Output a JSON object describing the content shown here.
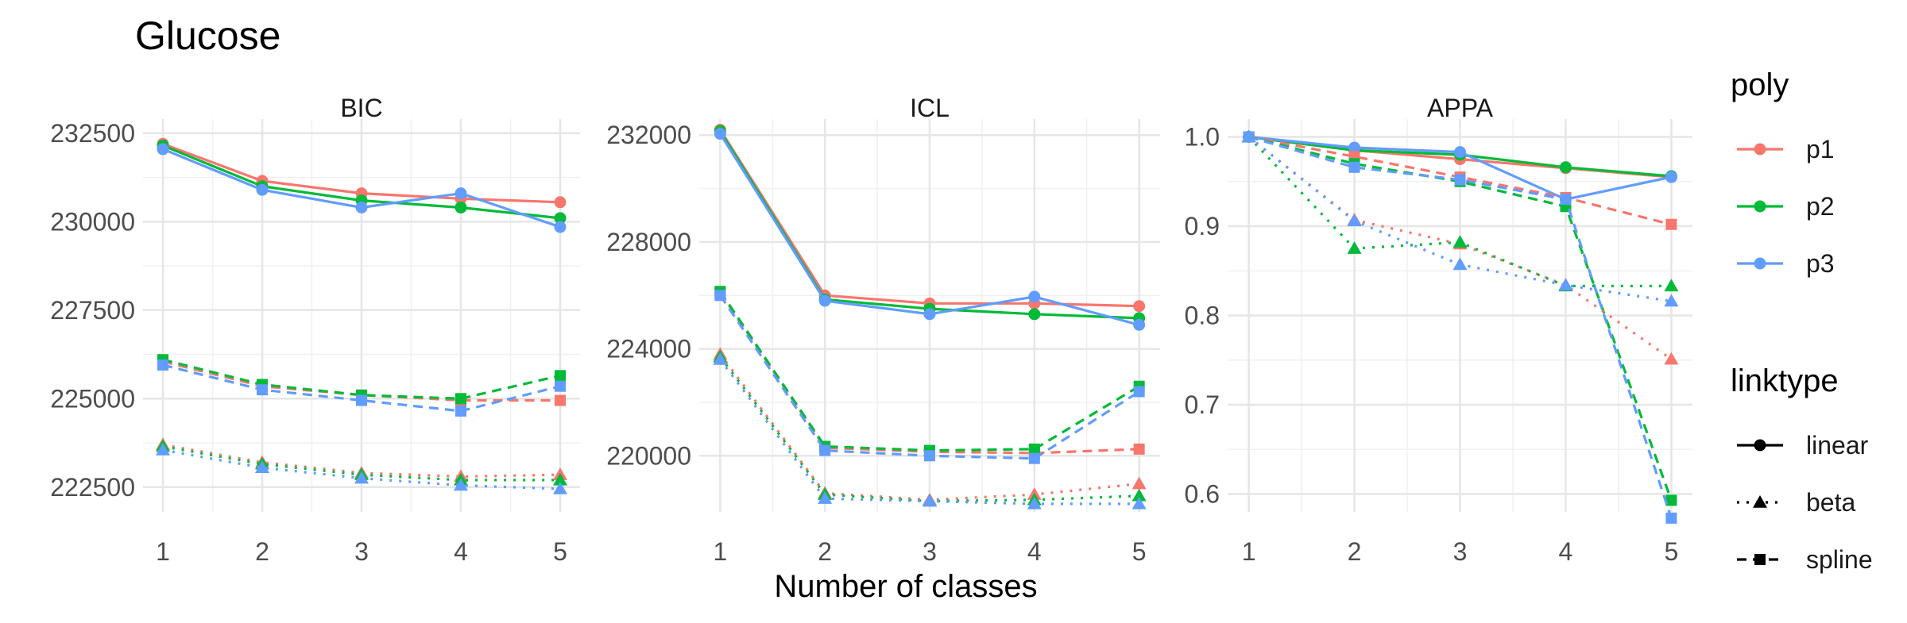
{
  "chart_data": {
    "type": "line",
    "title": "Glucose",
    "xlabel": "Number of classes",
    "ylabel": "",
    "x": [
      1,
      2,
      3,
      4,
      5
    ],
    "colors": {
      "p1": "#F8766D",
      "p2": "#00BA38",
      "p3": "#619CFF"
    },
    "grid": true,
    "legend_position": "right",
    "legend": {
      "poly_title": "poly",
      "poly": [
        "p1",
        "p2",
        "p3"
      ],
      "linktype_title": "linktype",
      "linktype": [
        "linear",
        "beta",
        "spline"
      ]
    },
    "panels": [
      {
        "name": "BIC",
        "ylim": [
          221800,
          232900
        ],
        "yticks": [
          222500,
          225000,
          227500,
          230000,
          232500
        ],
        "series": [
          {
            "poly": "p1",
            "linktype": "linear",
            "values": [
              232200,
              231150,
              230800,
              230650,
              230550
            ]
          },
          {
            "poly": "p2",
            "linktype": "linear",
            "values": [
              232150,
              231000,
              230600,
              230400,
              230100
            ]
          },
          {
            "poly": "p3",
            "linktype": "linear",
            "values": [
              232050,
              230900,
              230400,
              230800,
              229850
            ]
          },
          {
            "poly": "p1",
            "linktype": "spline",
            "values": [
              226050,
              225350,
              225100,
              224950,
              224950
            ]
          },
          {
            "poly": "p2",
            "linktype": "spline",
            "values": [
              226100,
              225400,
              225100,
              225000,
              225650
            ]
          },
          {
            "poly": "p3",
            "linktype": "spline",
            "values": [
              225950,
              225250,
              224950,
              224650,
              225350
            ]
          },
          {
            "poly": "p1",
            "linktype": "beta",
            "values": [
              223700,
              223200,
              222900,
              222800,
              222850
            ]
          },
          {
            "poly": "p2",
            "linktype": "beta",
            "values": [
              223650,
              223150,
              222850,
              222700,
              222700
            ]
          },
          {
            "poly": "p3",
            "linktype": "beta",
            "values": [
              223550,
              223050,
              222750,
              222550,
              222450
            ]
          }
        ]
      },
      {
        "name": "ICL",
        "ylim": [
          217900,
          232600
        ],
        "yticks": [
          220000,
          224000,
          228000,
          232000
        ],
        "series": [
          {
            "poly": "p1",
            "linktype": "linear",
            "values": [
              232200,
              226000,
              225700,
              225700,
              225600
            ]
          },
          {
            "poly": "p2",
            "linktype": "linear",
            "values": [
              232150,
              225850,
              225500,
              225300,
              225150
            ]
          },
          {
            "poly": "p3",
            "linktype": "linear",
            "values": [
              232050,
              225800,
              225300,
              225950,
              224900
            ]
          },
          {
            "poly": "p1",
            "linktype": "spline",
            "values": [
              226100,
              220300,
              220150,
              220100,
              220250
            ]
          },
          {
            "poly": "p2",
            "linktype": "spline",
            "values": [
              226150,
              220350,
              220200,
              220250,
              222600
            ]
          },
          {
            "poly": "p3",
            "linktype": "spline",
            "values": [
              226000,
              220200,
              220000,
              219900,
              222400
            ]
          },
          {
            "poly": "p1",
            "linktype": "beta",
            "values": [
              223800,
              218600,
              218350,
              218550,
              218950
            ]
          },
          {
            "poly": "p2",
            "linktype": "beta",
            "values": [
              223700,
              218550,
              218300,
              218350,
              218500
            ]
          },
          {
            "poly": "p3",
            "linktype": "beta",
            "values": [
              223600,
              218400,
              218300,
              218200,
              218200
            ]
          }
        ]
      },
      {
        "name": "APPA",
        "ylim": [
          0.58,
          1.02
        ],
        "yticks": [
          0.6,
          0.7,
          0.8,
          0.9,
          1.0
        ],
        "ytick_labels": [
          "0.6",
          "0.7",
          "0.8",
          "0.9",
          "1.0"
        ],
        "series": [
          {
            "poly": "p1",
            "linktype": "linear",
            "values": [
              1.0,
              0.985,
              0.975,
              0.965,
              0.955
            ]
          },
          {
            "poly": "p2",
            "linktype": "linear",
            "values": [
              1.0,
              0.985,
              0.98,
              0.966,
              0.956
            ]
          },
          {
            "poly": "p3",
            "linktype": "linear",
            "values": [
              1.0,
              0.988,
              0.983,
              0.93,
              0.955
            ]
          },
          {
            "poly": "p1",
            "linktype": "spline",
            "values": [
              1.0,
              0.978,
              0.955,
              0.932,
              0.902
            ]
          },
          {
            "poly": "p2",
            "linktype": "spline",
            "values": [
              1.0,
              0.97,
              0.95,
              0.922,
              0.593
            ]
          },
          {
            "poly": "p3",
            "linktype": "spline",
            "values": [
              1.0,
              0.966,
              0.952,
              0.93,
              0.573
            ]
          },
          {
            "poly": "p1",
            "linktype": "beta",
            "values": [
              1.0,
              0.907,
              0.88,
              0.834,
              0.751
            ]
          },
          {
            "poly": "p2",
            "linktype": "beta",
            "values": [
              1.0,
              0.875,
              0.882,
              0.833,
              0.833
            ]
          },
          {
            "poly": "p3",
            "linktype": "beta",
            "values": [
              1.0,
              0.906,
              0.857,
              0.834,
              0.816
            ]
          }
        ]
      }
    ]
  }
}
